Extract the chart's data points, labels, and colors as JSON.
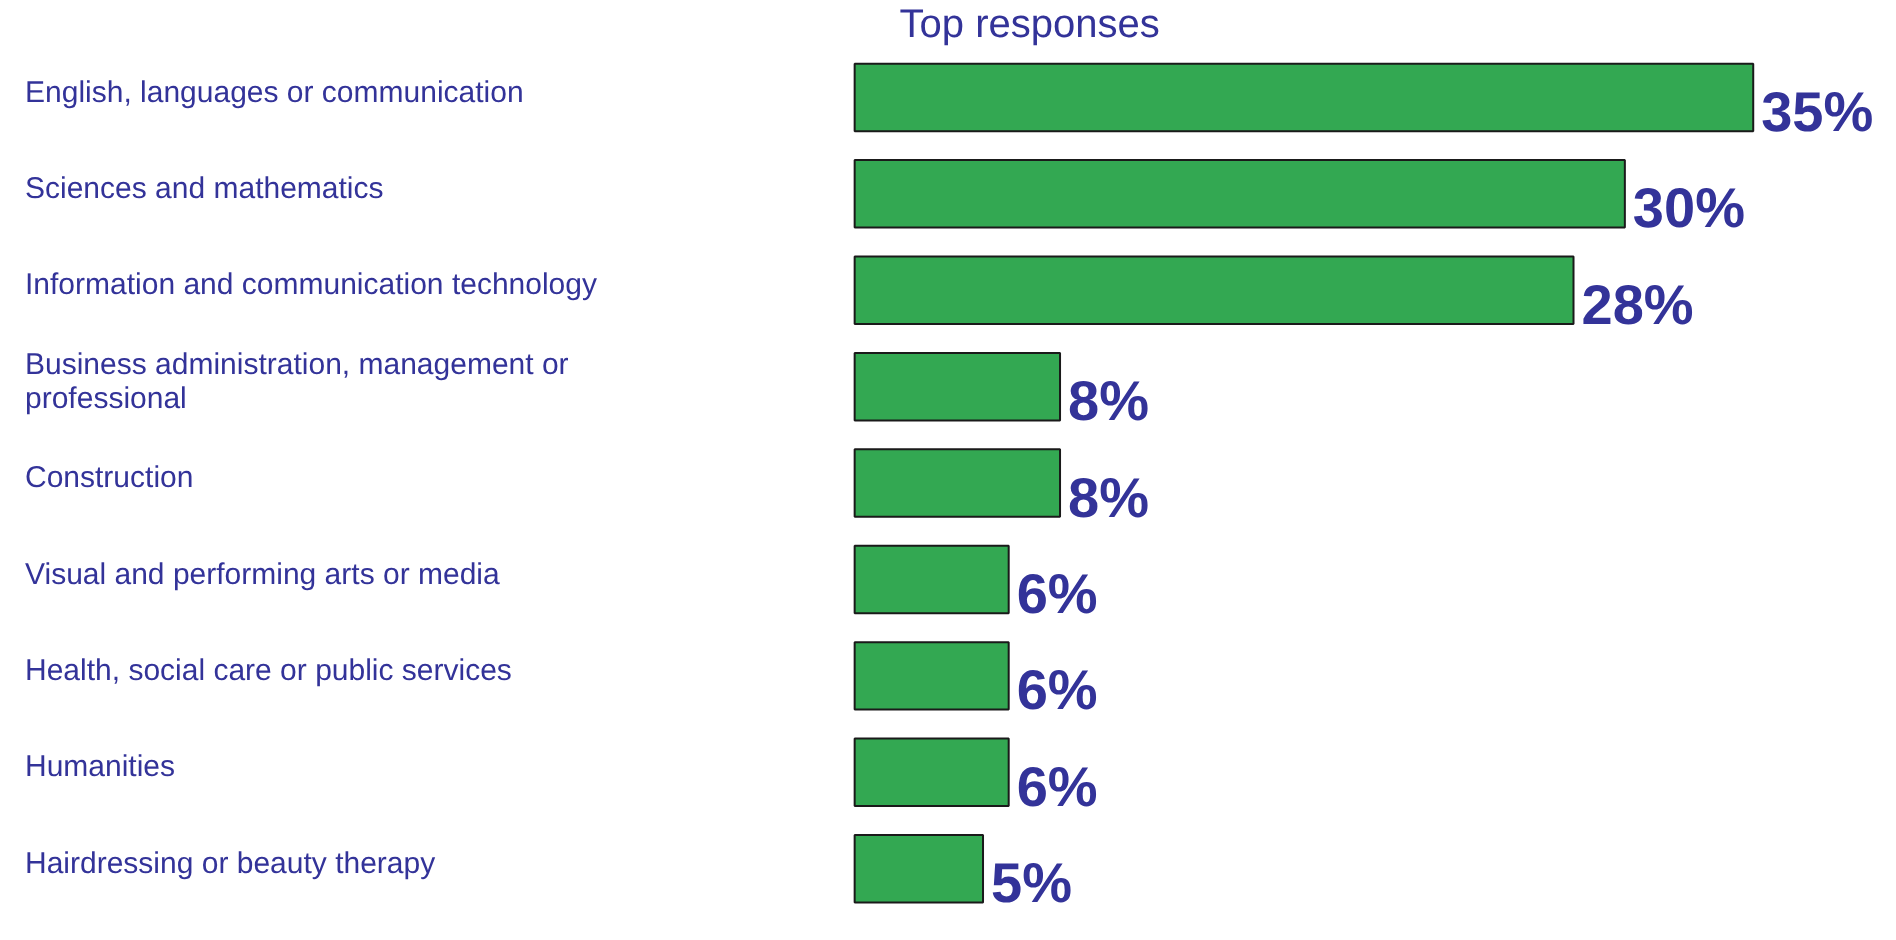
{
  "chart_data": {
    "type": "bar",
    "orientation": "horizontal",
    "title": "Top responses",
    "categories": [
      "English, languages or communication",
      "Sciences and mathematics",
      "Information and communication technology",
      "Business administration, management or professional",
      "Construction",
      "Visual and performing arts or media",
      "Health, social care or public services",
      "Humanities",
      "Hairdressing or beauty therapy"
    ],
    "values": [
      35,
      30,
      28,
      8,
      8,
      6,
      6,
      6,
      5
    ],
    "value_labels": [
      "35%",
      "30%",
      "28%",
      "8%",
      "8%",
      "6%",
      "6%",
      "6%",
      "5%"
    ],
    "color": "#33a852"
  }
}
